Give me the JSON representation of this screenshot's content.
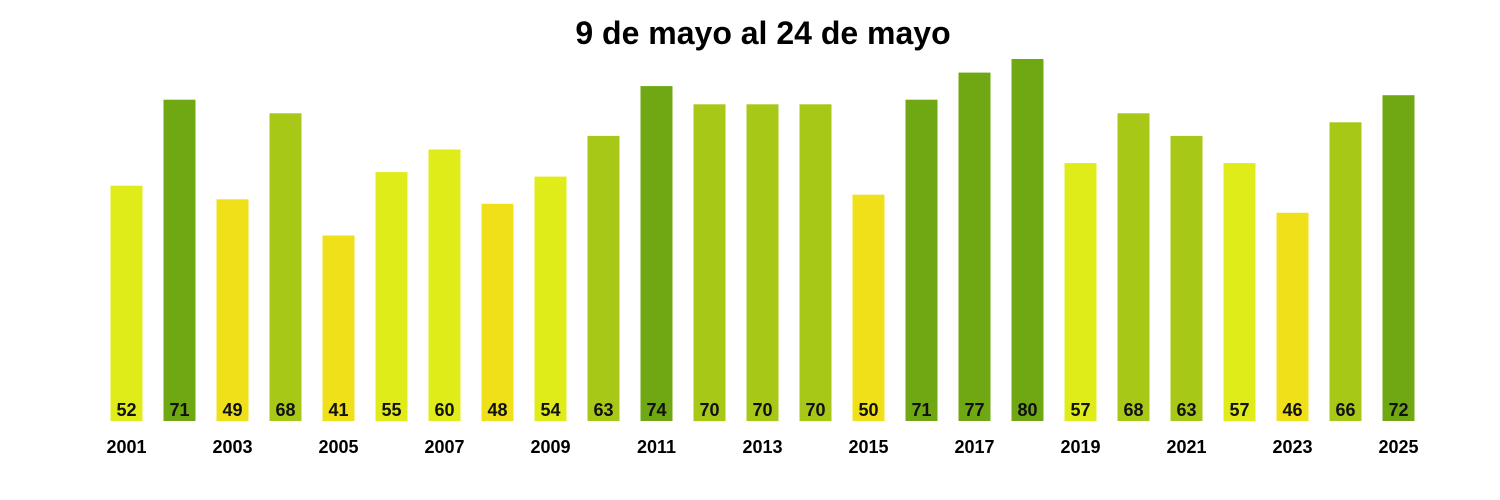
{
  "chart_data": {
    "type": "bar",
    "title": "9 de mayo al 24 de mayo",
    "xlabel": "",
    "ylabel": "",
    "ylim": [
      0,
      80
    ],
    "grid": false,
    "legend": "none",
    "categories": [
      "2001",
      "2002",
      "2003",
      "2004",
      "2005",
      "2006",
      "2007",
      "2008",
      "2009",
      "2010",
      "2011",
      "2012",
      "2013",
      "2014",
      "2015",
      "2016",
      "2017",
      "2018",
      "2019",
      "2020",
      "2021",
      "2022",
      "2023",
      "2024",
      "2025"
    ],
    "x_tick_labels": [
      "2001",
      "2003",
      "2005",
      "2007",
      "2009",
      "2011",
      "2013",
      "2015",
      "2017",
      "2019",
      "2021",
      "2023",
      "2025"
    ],
    "values": [
      52,
      71,
      49,
      68,
      41,
      55,
      60,
      48,
      54,
      63,
      74,
      70,
      70,
      70,
      50,
      71,
      77,
      80,
      57,
      68,
      63,
      57,
      46,
      66,
      72
    ],
    "color_scale": {
      "low": "#F0E01A",
      "mid_low": "#E0EC1A",
      "mid_high": "#A8C818",
      "high": "#6FA812"
    },
    "bar_colors": [
      "#E0EC1A",
      "#6FA812",
      "#F0E01A",
      "#A8C818",
      "#F0E01A",
      "#E0EC1A",
      "#E0EC1A",
      "#F0E01A",
      "#E0EC1A",
      "#A8C818",
      "#6FA812",
      "#A8C818",
      "#A8C818",
      "#A8C818",
      "#F0E01A",
      "#6FA812",
      "#6FA812",
      "#6FA812",
      "#E0EC1A",
      "#A8C818",
      "#A8C818",
      "#E0EC1A",
      "#F0E01A",
      "#A8C818",
      "#6FA812"
    ]
  }
}
